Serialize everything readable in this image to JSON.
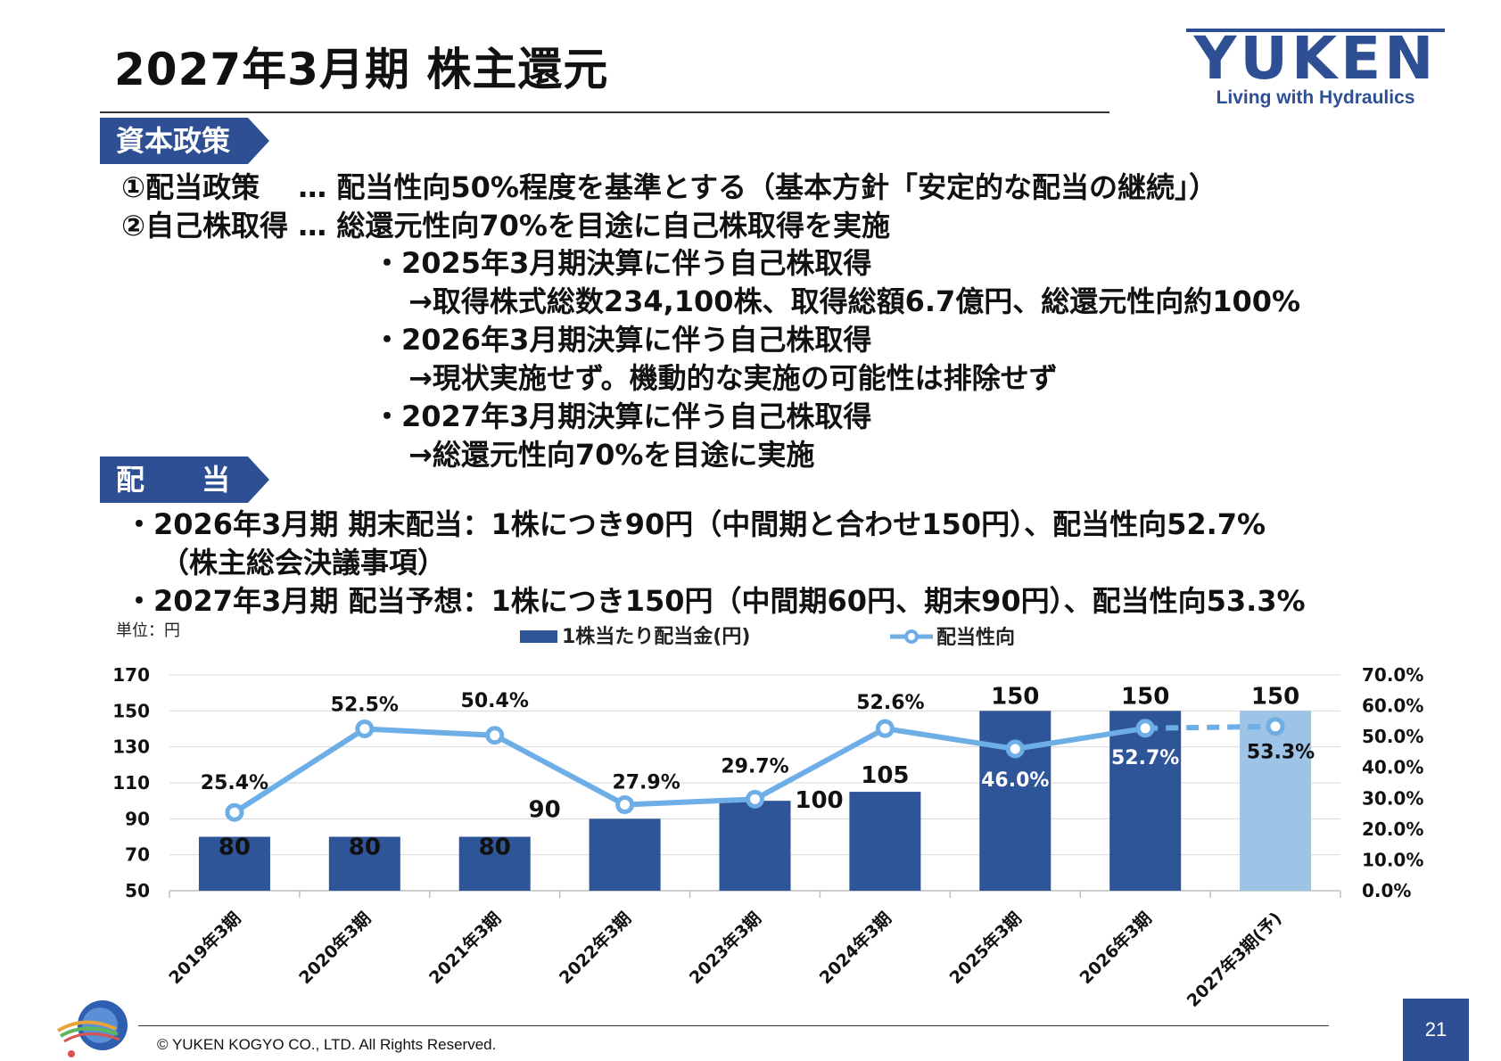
{
  "header": {
    "title": "2027年3月期 株主還元",
    "logo_text": "YUKEN",
    "logo_tagline": "Living with Hydraulics"
  },
  "capital_policy": {
    "tag": "資本政策",
    "lines": [
      "①配当政策　 … 配当性向50%程度を基準とする（基本方針「安定的な配当の継続」）",
      "②自己株取得 … 総還元性向70%を目途に自己株取得を実施",
      "・2025年3月期決算に伴う自己株取得",
      "→取得株式総数234,100株、取得総額6.7億円、総還元性向約100%",
      "・2026年3月期決算に伴う自己株取得",
      "→現状実施せず。機動的な実施の可能性は排除せず",
      "・2027年3月期決算に伴う自己株取得",
      "→総還元性向70%を目途に実施"
    ]
  },
  "dividend": {
    "tag": "配　　当",
    "lines": [
      "・2026年3月期 期末配当：1株につき90円（中間期と合わせ150円）、配当性向52.7%",
      "（株主総会決議事項）",
      "・2027年3月期 配当予想：1株につき150円（中間期60円、期末90円）、配当性向53.3%"
    ]
  },
  "chart_data": {
    "type": "bar",
    "unit_label": "単位：円",
    "categories": [
      "2019年3期",
      "2020年3期",
      "2021年3期",
      "2022年3期",
      "2023年3期",
      "2024年3期",
      "2025年3期",
      "2026年3期",
      "2027年3期(予)"
    ],
    "series": [
      {
        "name": "1株当たり配当金(円)",
        "type": "bar",
        "values": [
          80,
          80,
          80,
          90,
          100,
          105,
          150,
          150,
          150
        ],
        "labels": [
          "80",
          "80",
          "80",
          "90",
          "100",
          "105",
          "150",
          "150",
          "150"
        ]
      },
      {
        "name": "配当性向",
        "type": "line",
        "values": [
          25.4,
          52.5,
          50.4,
          27.9,
          29.7,
          52.6,
          46.0,
          52.7,
          53.3
        ],
        "labels": [
          "25.4%",
          "52.5%",
          "50.4%",
          "27.9%",
          "29.7%",
          "52.6%",
          "46.0%",
          "52.7%",
          "53.3%"
        ],
        "last_segment": "dashed"
      }
    ],
    "y_left": {
      "min": 50,
      "max": 170,
      "ticks": [
        "170",
        "150",
        "130",
        "110",
        "90",
        "70",
        "50"
      ]
    },
    "y_right": {
      "min": 0,
      "max": 70,
      "ticks": [
        "70.0%",
        "60.0%",
        "50.0%",
        "40.0%",
        "30.0%",
        "20.0%",
        "10.0%",
        "0.0%"
      ]
    },
    "grid": true,
    "legend_position": "top",
    "colors": {
      "bar": "#2e5597",
      "bar_forecast": "#9dc3e6",
      "line": "#6eaee6"
    }
  },
  "footer": {
    "copyright": "© YUKEN KOGYO CO., LTD. All Rights Reserved.",
    "page": "21"
  }
}
